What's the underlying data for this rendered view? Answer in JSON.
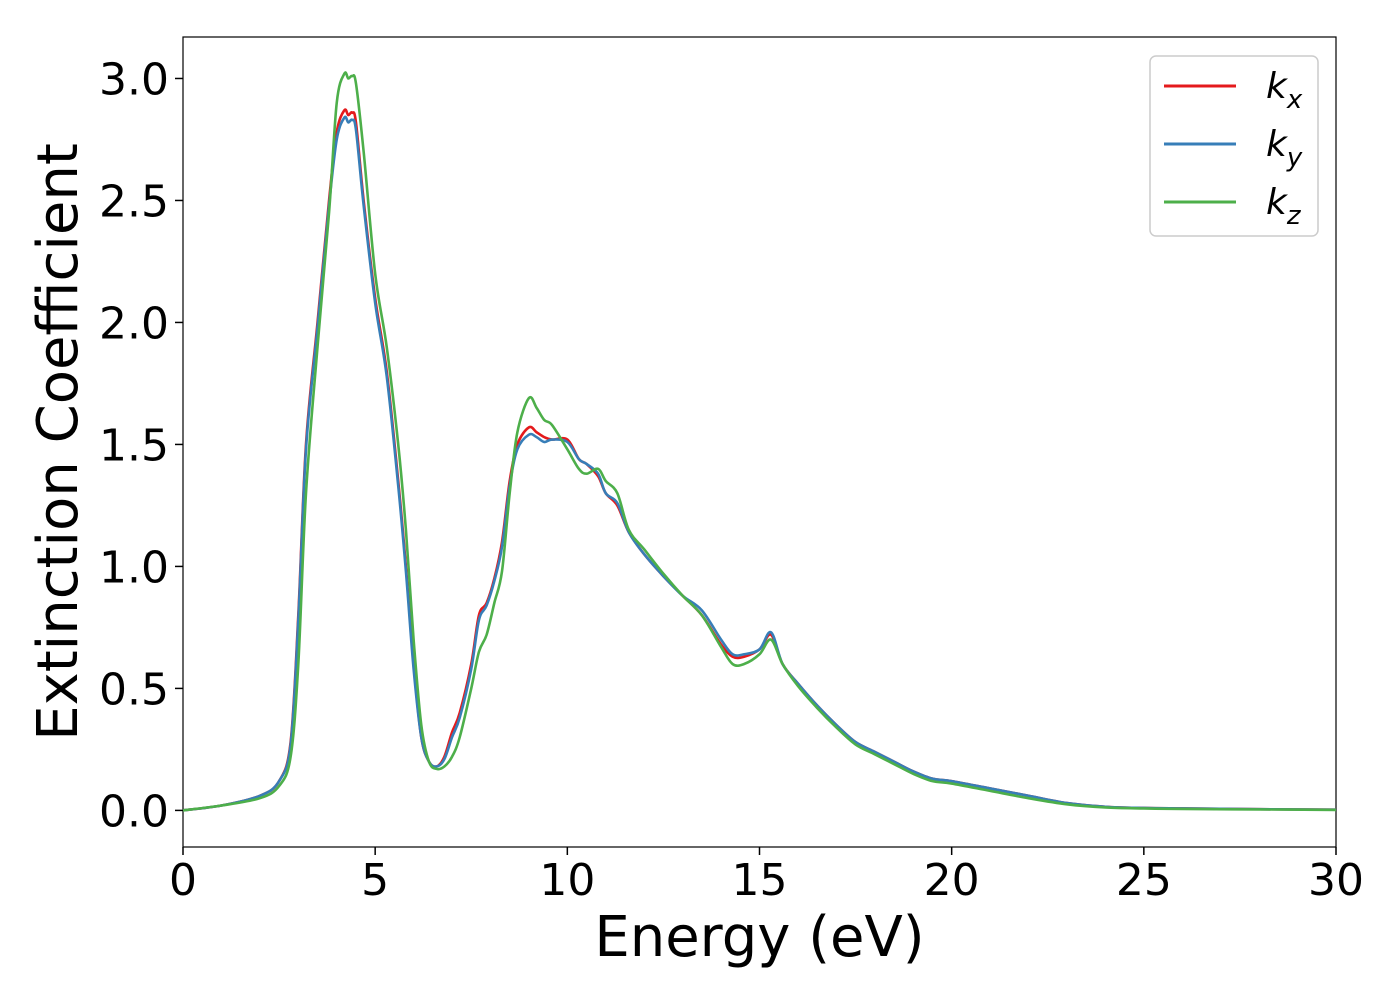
{
  "chart_data": {
    "type": "line",
    "title": "",
    "xlabel": "Energy (eV)",
    "ylabel": "Extinction Coefficient",
    "xlim": [
      0,
      30
    ],
    "ylim": [
      -0.15,
      3.17
    ],
    "xticks": [
      0,
      5,
      10,
      15,
      20,
      25,
      30
    ],
    "xtick_labels": [
      "0",
      "5",
      "10",
      "15",
      "20",
      "25",
      "30"
    ],
    "yticks": [
      0.0,
      0.5,
      1.0,
      1.5,
      2.0,
      2.5,
      3.0
    ],
    "ytick_labels": [
      "0.0",
      "0.5",
      "1.0",
      "1.5",
      "2.0",
      "2.5",
      "3.0"
    ],
    "grid": false,
    "legend_position": "top-right",
    "series": [
      {
        "name": "k",
        "subscript": "x",
        "color": "#e41a1c",
        "x": [
          0,
          1,
          2,
          2.5,
          2.8,
          3.0,
          3.2,
          3.5,
          3.8,
          4.0,
          4.2,
          4.3,
          4.4,
          4.5,
          4.7,
          5.0,
          5.3,
          5.6,
          5.8,
          6.0,
          6.2,
          6.4,
          6.6,
          6.8,
          7.0,
          7.2,
          7.5,
          7.7,
          7.9,
          8.1,
          8.3,
          8.5,
          8.7,
          9.0,
          9.2,
          9.4,
          9.6,
          10.0,
          10.3,
          10.5,
          10.8,
          11.0,
          11.3,
          11.6,
          12.0,
          12.5,
          13.0,
          13.5,
          14.0,
          14.3,
          14.6,
          15.0,
          15.3,
          15.6,
          16.0,
          16.5,
          17.0,
          17.5,
          18.0,
          18.5,
          19.0,
          19.5,
          20.0,
          21.0,
          22.0,
          23.0,
          24.0,
          25.0,
          26.0,
          28.0,
          30.0
        ],
        "y": [
          0.0,
          0.02,
          0.06,
          0.12,
          0.28,
          0.8,
          1.5,
          2.0,
          2.5,
          2.78,
          2.87,
          2.85,
          2.86,
          2.82,
          2.5,
          2.1,
          1.8,
          1.35,
          1.0,
          0.6,
          0.3,
          0.2,
          0.18,
          0.22,
          0.32,
          0.4,
          0.6,
          0.8,
          0.85,
          0.95,
          1.1,
          1.35,
          1.5,
          1.57,
          1.55,
          1.53,
          1.52,
          1.52,
          1.44,
          1.42,
          1.37,
          1.3,
          1.25,
          1.14,
          1.05,
          0.96,
          0.88,
          0.8,
          0.68,
          0.63,
          0.63,
          0.66,
          0.72,
          0.6,
          0.52,
          0.43,
          0.35,
          0.28,
          0.24,
          0.2,
          0.16,
          0.13,
          0.12,
          0.09,
          0.06,
          0.03,
          0.015,
          0.01,
          0.008,
          0.005,
          0.003
        ]
      },
      {
        "name": "k",
        "subscript": "y",
        "color": "#377eb8",
        "x": [
          0,
          1,
          2,
          2.5,
          2.8,
          3.0,
          3.2,
          3.5,
          3.8,
          4.0,
          4.2,
          4.3,
          4.4,
          4.5,
          4.7,
          5.0,
          5.3,
          5.6,
          5.8,
          6.0,
          6.2,
          6.4,
          6.6,
          6.8,
          7.0,
          7.2,
          7.5,
          7.7,
          7.9,
          8.1,
          8.3,
          8.5,
          8.7,
          9.0,
          9.2,
          9.4,
          9.6,
          10.0,
          10.3,
          10.5,
          10.8,
          11.0,
          11.3,
          11.6,
          12.0,
          12.5,
          13.0,
          13.5,
          14.0,
          14.3,
          14.6,
          15.0,
          15.3,
          15.6,
          16.0,
          16.5,
          17.0,
          17.5,
          18.0,
          18.5,
          19.0,
          19.5,
          20.0,
          21.0,
          22.0,
          23.0,
          24.0,
          25.0,
          26.0,
          28.0,
          30.0
        ],
        "y": [
          0.0,
          0.02,
          0.06,
          0.12,
          0.27,
          0.78,
          1.48,
          1.98,
          2.48,
          2.75,
          2.84,
          2.82,
          2.83,
          2.79,
          2.48,
          2.08,
          1.78,
          1.33,
          0.98,
          0.58,
          0.3,
          0.2,
          0.18,
          0.21,
          0.3,
          0.38,
          0.58,
          0.78,
          0.84,
          0.94,
          1.08,
          1.33,
          1.48,
          1.54,
          1.53,
          1.51,
          1.52,
          1.51,
          1.44,
          1.42,
          1.38,
          1.3,
          1.26,
          1.14,
          1.05,
          0.96,
          0.88,
          0.82,
          0.7,
          0.64,
          0.64,
          0.66,
          0.73,
          0.6,
          0.52,
          0.43,
          0.35,
          0.28,
          0.24,
          0.2,
          0.16,
          0.13,
          0.12,
          0.09,
          0.06,
          0.03,
          0.015,
          0.01,
          0.008,
          0.005,
          0.003
        ]
      },
      {
        "name": "k",
        "subscript": "z",
        "color": "#4daf4a",
        "x": [
          0,
          1,
          2,
          2.5,
          2.8,
          3.0,
          3.2,
          3.5,
          3.8,
          4.0,
          4.2,
          4.3,
          4.4,
          4.5,
          4.7,
          5.0,
          5.3,
          5.6,
          5.8,
          6.0,
          6.2,
          6.4,
          6.6,
          6.8,
          7.0,
          7.2,
          7.5,
          7.7,
          7.9,
          8.1,
          8.3,
          8.5,
          8.7,
          9.0,
          9.2,
          9.4,
          9.6,
          10.0,
          10.3,
          10.5,
          10.8,
          11.0,
          11.3,
          11.6,
          12.0,
          12.5,
          13.0,
          13.5,
          14.0,
          14.3,
          14.6,
          15.0,
          15.3,
          15.6,
          16.0,
          16.5,
          17.0,
          17.5,
          18.0,
          18.5,
          19.0,
          19.5,
          20.0,
          21.0,
          22.0,
          23.0,
          24.0,
          25.0,
          26.0,
          28.0,
          30.0
        ],
        "y": [
          0.0,
          0.02,
          0.05,
          0.1,
          0.22,
          0.6,
          1.3,
          1.9,
          2.45,
          2.9,
          3.02,
          3.0,
          3.01,
          2.98,
          2.7,
          2.2,
          1.9,
          1.5,
          1.15,
          0.7,
          0.35,
          0.2,
          0.17,
          0.18,
          0.22,
          0.3,
          0.5,
          0.65,
          0.72,
          0.85,
          0.98,
          1.3,
          1.55,
          1.69,
          1.65,
          1.6,
          1.58,
          1.48,
          1.4,
          1.38,
          1.4,
          1.35,
          1.3,
          1.15,
          1.07,
          0.97,
          0.88,
          0.8,
          0.67,
          0.6,
          0.6,
          0.64,
          0.7,
          0.6,
          0.51,
          0.42,
          0.34,
          0.27,
          0.23,
          0.19,
          0.15,
          0.12,
          0.11,
          0.08,
          0.05,
          0.025,
          0.012,
          0.008,
          0.006,
          0.004,
          0.002
        ]
      }
    ]
  }
}
